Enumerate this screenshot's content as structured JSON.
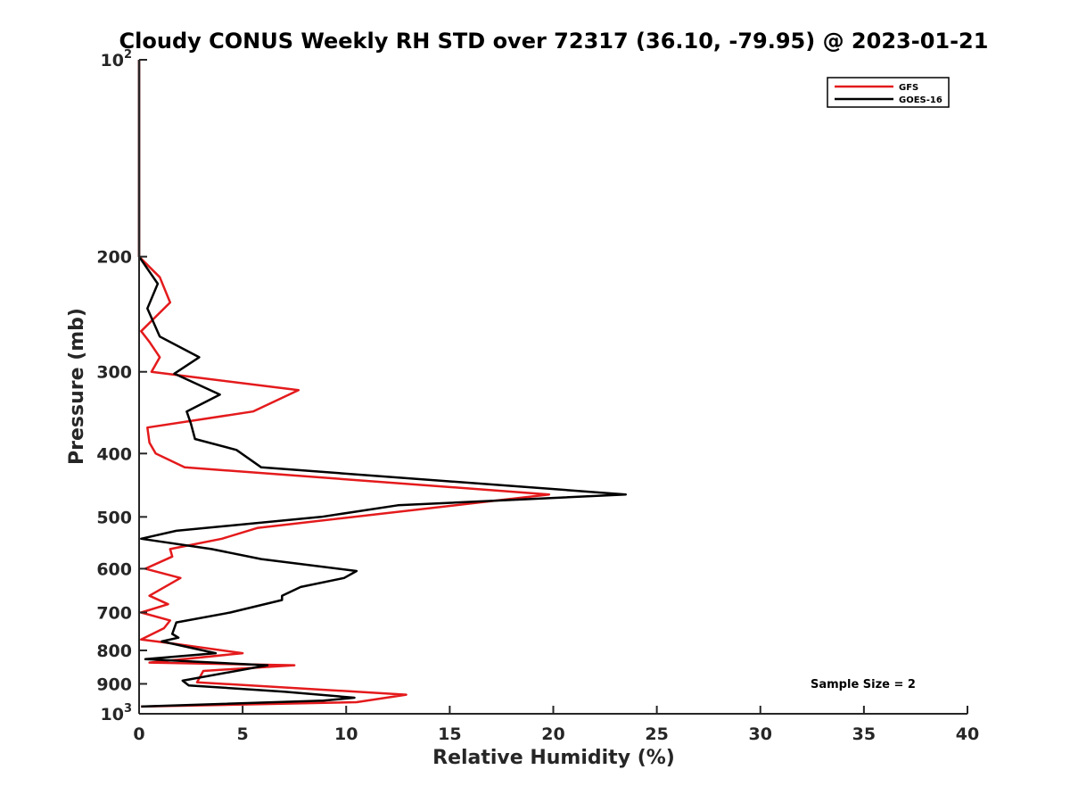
{
  "chart_data": {
    "type": "line",
    "title": "Cloudy CONUS Weekly RH STD over 72317 (36.10, -79.95) @ 2023-01-21",
    "xlabel": "Relative Humidity (%)",
    "ylabel": "Pressure (mb)",
    "xlim": [
      0,
      40
    ],
    "ylim": [
      100,
      1000
    ],
    "yscale": "log",
    "y_reversed": true,
    "grid": false,
    "legend_position": "top-right",
    "x_ticks": [
      0,
      5,
      10,
      15,
      20,
      25,
      30,
      35,
      40
    ],
    "x_tick_labels": [
      "0",
      "5",
      "10",
      "15",
      "20",
      "25",
      "30",
      "35",
      "40"
    ],
    "y_ticks": [
      100,
      200,
      300,
      400,
      500,
      600,
      700,
      800,
      900,
      1000
    ],
    "y_tick_labels": [
      {
        "base": "10",
        "exp": "2"
      },
      {
        "base": "200",
        "exp": ""
      },
      {
        "base": "300",
        "exp": ""
      },
      {
        "base": "400",
        "exp": ""
      },
      {
        "base": "500",
        "exp": ""
      },
      {
        "base": "600",
        "exp": ""
      },
      {
        "base": "700",
        "exp": ""
      },
      {
        "base": "800",
        "exp": ""
      },
      {
        "base": "900",
        "exp": ""
      },
      {
        "base": "10",
        "exp": "3"
      }
    ],
    "annotation": "Sample Size = 2",
    "series": [
      {
        "name": "GFS",
        "color": "#e41a1c",
        "points": [
          [
            0,
            100
          ],
          [
            0,
            150
          ],
          [
            0,
            200
          ],
          [
            1.0,
            215
          ],
          [
            1.5,
            235
          ],
          [
            0.1,
            260
          ],
          [
            0.5,
            270
          ],
          [
            1.0,
            285
          ],
          [
            0.6,
            300
          ],
          [
            7.7,
            320
          ],
          [
            5.5,
            345
          ],
          [
            0.4,
            365
          ],
          [
            0.5,
            385
          ],
          [
            0.8,
            400
          ],
          [
            2.2,
            420
          ],
          [
            19.8,
            462
          ],
          [
            16.5,
            475
          ],
          [
            5.7,
            520
          ],
          [
            4.0,
            540
          ],
          [
            1.5,
            560
          ],
          [
            1.6,
            575
          ],
          [
            0.3,
            600
          ],
          [
            2.0,
            620
          ],
          [
            0.5,
            660
          ],
          [
            1.4,
            680
          ],
          [
            0.1,
            700
          ],
          [
            1.5,
            720
          ],
          [
            1.2,
            740
          ],
          [
            0.1,
            770
          ],
          [
            1.5,
            780
          ],
          [
            5.0,
            808
          ],
          [
            0.5,
            835
          ],
          [
            7.5,
            843
          ],
          [
            3.1,
            860
          ],
          [
            2.8,
            895
          ],
          [
            12.9,
            935
          ],
          [
            10.5,
            960
          ],
          [
            0.1,
            975
          ]
        ]
      },
      {
        "name": "GOES-16",
        "color": "#000000",
        "points": [
          [
            0,
            100
          ],
          [
            0,
            150
          ],
          [
            0,
            200
          ],
          [
            0.9,
            220
          ],
          [
            0.4,
            240
          ],
          [
            1.0,
            265
          ],
          [
            2.9,
            285
          ],
          [
            1.7,
            302
          ],
          [
            3.9,
            325
          ],
          [
            2.3,
            345
          ],
          [
            2.5,
            360
          ],
          [
            2.7,
            380
          ],
          [
            4.7,
            395
          ],
          [
            5.9,
            420
          ],
          [
            23.5,
            462
          ],
          [
            12.5,
            480
          ],
          [
            8.8,
            500
          ],
          [
            1.8,
            525
          ],
          [
            0.1,
            540
          ],
          [
            3.5,
            560
          ],
          [
            5.9,
            580
          ],
          [
            10.5,
            605
          ],
          [
            9.9,
            620
          ],
          [
            7.8,
            640
          ],
          [
            6.9,
            660
          ],
          [
            6.9,
            670
          ],
          [
            4.4,
            700
          ],
          [
            1.8,
            725
          ],
          [
            1.6,
            755
          ],
          [
            1.9,
            765
          ],
          [
            1.1,
            775
          ],
          [
            3.7,
            808
          ],
          [
            0.3,
            825
          ],
          [
            6.2,
            843
          ],
          [
            2.1,
            890
          ],
          [
            2.4,
            905
          ],
          [
            7.0,
            925
          ],
          [
            10.4,
            945
          ],
          [
            8.9,
            955
          ],
          [
            0.1,
            975
          ]
        ]
      }
    ]
  }
}
